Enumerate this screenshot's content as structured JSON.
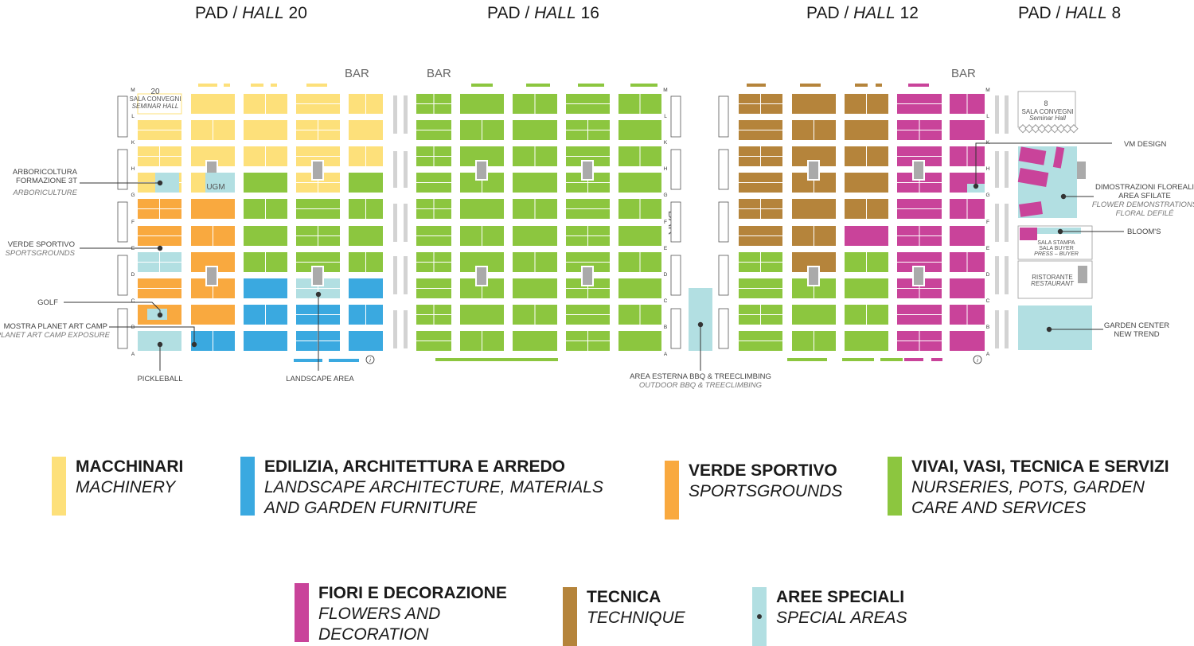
{
  "halls": [
    {
      "roman": "PAD /",
      "italic": "HALL",
      "num": "20"
    },
    {
      "roman": "PAD /",
      "italic": "HALL",
      "num": "16"
    },
    {
      "roman": "PAD /",
      "italic": "HALL",
      "num": "12"
    },
    {
      "roman": "PAD /",
      "italic": "HALL",
      "num": "8"
    }
  ],
  "bars": [
    "BAR",
    "BAR",
    "BAR",
    "BAR"
  ],
  "row_letters": [
    "M",
    "L",
    "K",
    "H",
    "G",
    "F",
    "E",
    "D",
    "C",
    "B",
    "A"
  ],
  "inner_labels": {
    "hall20_num": "20",
    "hall20_conv": "SALA CONVEGNI",
    "hall20_conv_en": "SEMINAR HALL",
    "ugm": "UGM",
    "hall8_num": "8",
    "hall8_conv": "SALA CONVEGNI",
    "hall8_conv_en": "Seminar Hall",
    "stampa1": "SALA STAMPA",
    "stampa2": "SALA BUYER",
    "stampa3": "PRESS – BUYER",
    "rist": "RISTORANTE",
    "rist_en": "RESTAURANT"
  },
  "callouts": {
    "arbo1": "ARBORICOLTURA",
    "arbo2": "FORMAZIONE 3T",
    "arbo3": "ARBORICULTURE",
    "verde1": "VERDE SPORTIVO",
    "verde2": "SPORTSGROUNDS",
    "golf": "GOLF",
    "mostra1": "MOSTRA PLANET ART CAMP",
    "mostra2": "PLANET ART CAMP EXPOSURE",
    "pickle": "PICKLEBALL",
    "landscape": "LANDSCAPE AREA",
    "bbq1": "AREA ESTERNA BBQ & TREECLIMBING",
    "bbq2": "OUTDOOR BBQ & TREECLIMBING",
    "vm": "VM DESIGN",
    "dimo1": "DIMOSTRAZIONI FLOREALI",
    "dimo2": "AREA SFILATE",
    "dimo3": "FLOWER DEMONSTRATIONS",
    "dimo4": "FLORAL DEFILÉ",
    "blooms": "BLOOM'S",
    "gc1": "GARDEN CENTER",
    "gc2": "NEW TREND"
  },
  "legend": [
    {
      "it": "MACCHINARI",
      "en": "MACHINERY",
      "color": "#fde07a"
    },
    {
      "it": "EDILIZIA, ARCHITETTURA E ARREDO",
      "en": "LANDSCAPE ARCHITECTURE, MATERIALS\nAND GARDEN FURNITURE",
      "color": "#3aa9e0"
    },
    {
      "it": "VERDE SPORTIVO",
      "en": "SPORTSGROUNDS",
      "color": "#f9a93f"
    },
    {
      "it": "VIVAI, VASI, TECNICA E SERVIZI",
      "en": "NURSERIES, POTS, GARDEN\nCARE AND SERVICES",
      "color": "#8cc63f"
    },
    {
      "it": "FIORI E DECORAZIONE",
      "en": "FLOWERS AND\nDECORATION",
      "color": "#c9439a"
    },
    {
      "it": "TECNICA",
      "en": "TECHNIQUE",
      "color": "#b5843b"
    },
    {
      "it": "AREE SPECIALI",
      "en": "SPECIAL AREAS",
      "color": "#b2dfe2"
    }
  ]
}
